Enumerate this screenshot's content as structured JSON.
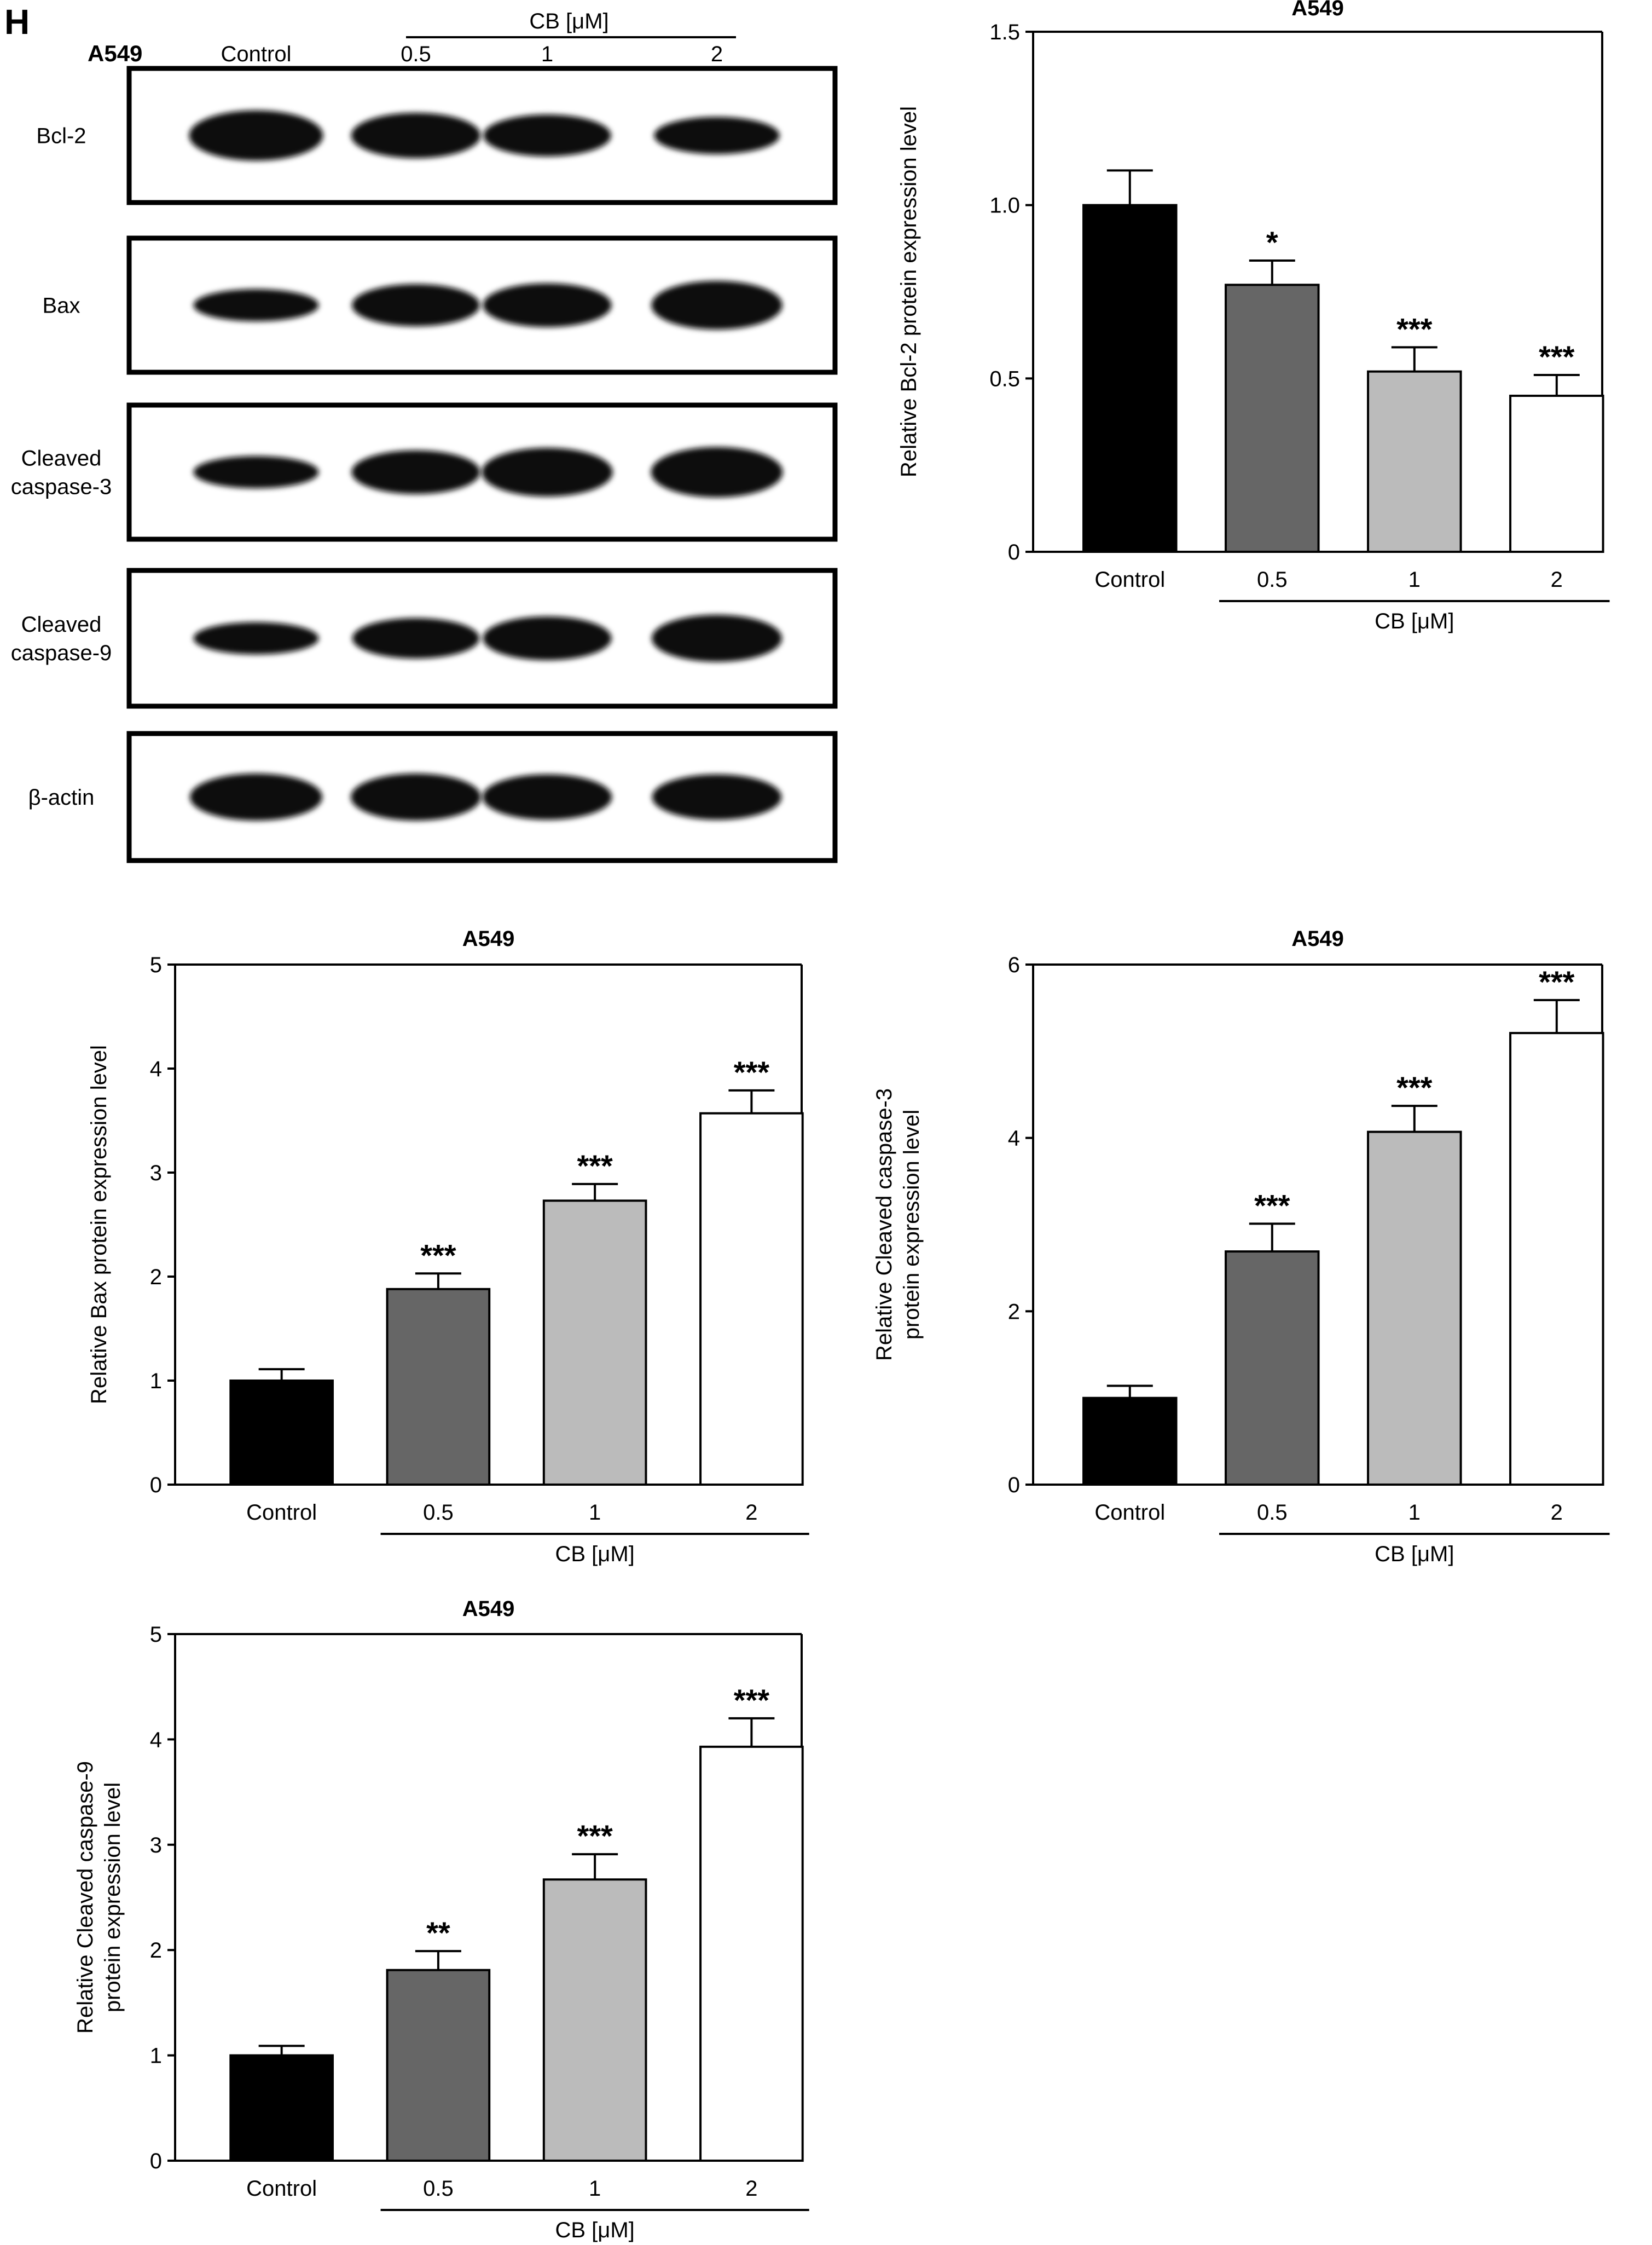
{
  "panel_letter": "H",
  "blot": {
    "cell_line": "A549",
    "control_label": "Control",
    "group_label": "CB [μM]",
    "lanes": [
      "0.5",
      "1",
      "2"
    ],
    "rows": [
      {
        "label": [
          "Bcl-2"
        ],
        "intensity": [
          1.0,
          0.85,
          0.74,
          0.6
        ]
      },
      {
        "label": [
          "Bax"
        ],
        "intensity": [
          0.45,
          0.75,
          0.8,
          0.95
        ]
      },
      {
        "label": [
          "Cleaved",
          "caspase-3"
        ],
        "intensity": [
          0.45,
          0.8,
          0.95,
          1.0
        ]
      },
      {
        "label": [
          "Cleaved",
          "caspase-9"
        ],
        "intensity": [
          0.45,
          0.7,
          0.8,
          0.9
        ]
      },
      {
        "label": [
          "β-actin"
        ],
        "intensity": [
          0.9,
          0.9,
          0.85,
          0.85
        ]
      }
    ]
  },
  "chart_data": [
    {
      "type": "bar",
      "title": "A549",
      "ylabel": [
        "Relative Bcl-2 protein expression level"
      ],
      "categories": [
        "Control",
        "0.5",
        "1",
        "2"
      ],
      "group_label": "CB [μM]",
      "values": [
        1.0,
        0.77,
        0.52,
        0.45
      ],
      "errors": [
        0.1,
        0.07,
        0.07,
        0.06
      ],
      "significance": [
        "",
        "*",
        "***",
        "***"
      ],
      "ylim": [
        0,
        1.5
      ],
      "yticks": [
        0,
        0.5,
        1.0,
        1.5
      ],
      "ytick_labels": [
        "0",
        "0.5",
        "1.0",
        "1.5"
      ],
      "colors": [
        "#000000",
        "#666666",
        "#bbbbbb",
        "#ffffff"
      ]
    },
    {
      "type": "bar",
      "title": "A549",
      "ylabel": [
        "Relative Bax protein expression level"
      ],
      "categories": [
        "Control",
        "0.5",
        "1",
        "2"
      ],
      "group_label": "CB [μM]",
      "values": [
        1.0,
        1.88,
        2.73,
        3.57
      ],
      "errors": [
        0.11,
        0.15,
        0.16,
        0.22
      ],
      "significance": [
        "",
        "***",
        "***",
        "***"
      ],
      "ylim": [
        0,
        5
      ],
      "yticks": [
        0,
        1,
        2,
        3,
        4,
        5
      ],
      "ytick_labels": [
        "0",
        "1",
        "2",
        "3",
        "4",
        "5"
      ],
      "colors": [
        "#000000",
        "#666666",
        "#bbbbbb",
        "#ffffff"
      ]
    },
    {
      "type": "bar",
      "title": "A549",
      "ylabel": [
        "Relative Cleaved caspase-3",
        "protein expression level"
      ],
      "categories": [
        "Control",
        "0.5",
        "1",
        "2"
      ],
      "group_label": "CB [μM]",
      "values": [
        1.0,
        2.69,
        4.07,
        5.21
      ],
      "errors": [
        0.14,
        0.32,
        0.3,
        0.38
      ],
      "significance": [
        "",
        "***",
        "***",
        "***"
      ],
      "ylim": [
        0,
        6
      ],
      "yticks": [
        0,
        2,
        4,
        6
      ],
      "ytick_labels": [
        "0",
        "2",
        "4",
        "6"
      ],
      "colors": [
        "#000000",
        "#666666",
        "#bbbbbb",
        "#ffffff"
      ]
    },
    {
      "type": "bar",
      "title": "A549",
      "ylabel": [
        "Relative Cleaved caspase-9",
        "protein expression level"
      ],
      "categories": [
        "Control",
        "0.5",
        "1",
        "2"
      ],
      "group_label": "CB [μM]",
      "values": [
        1.0,
        1.81,
        2.67,
        3.93
      ],
      "errors": [
        0.09,
        0.18,
        0.24,
        0.27
      ],
      "significance": [
        "",
        "**",
        "***",
        "***"
      ],
      "ylim": [
        0,
        5
      ],
      "yticks": [
        0,
        1,
        2,
        3,
        4,
        5
      ],
      "ytick_labels": [
        "0",
        "1",
        "2",
        "3",
        "4",
        "5"
      ],
      "colors": [
        "#000000",
        "#666666",
        "#bbbbbb",
        "#ffffff"
      ]
    }
  ]
}
